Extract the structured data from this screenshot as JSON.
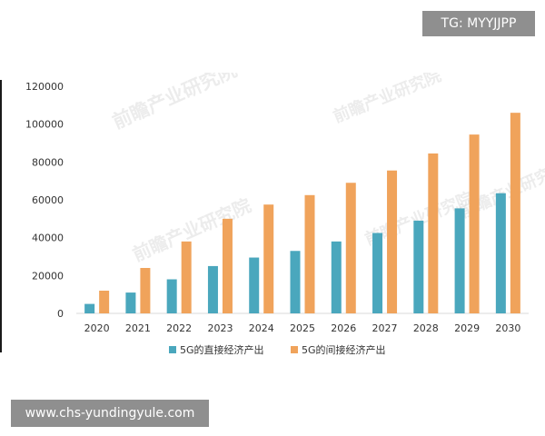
{
  "overlays": {
    "tg_label": "TG: MYYJJPP",
    "url_label": "www.chs-yundingyule.com"
  },
  "watermark": {
    "text": "前瞻产业研究院"
  },
  "chart_data": {
    "type": "bar",
    "categories": [
      "2020",
      "2021",
      "2022",
      "2023",
      "2024",
      "2025",
      "2026",
      "2027",
      "2028",
      "2029",
      "2030"
    ],
    "series": [
      {
        "name": "5G的直接经济产出",
        "color": "#4aa7bd",
        "values": [
          5000,
          11000,
          18000,
          25000,
          29500,
          33000,
          38000,
          42500,
          49000,
          55500,
          63500
        ]
      },
      {
        "name": "5G的间接经济产出",
        "color": "#f0a35b",
        "values": [
          12000,
          24000,
          38000,
          50000,
          57500,
          62500,
          69000,
          75500,
          84500,
          94500,
          106000
        ]
      }
    ],
    "ylim": [
      0,
      120000
    ],
    "yticks": [
      0,
      20000,
      40000,
      60000,
      80000,
      100000,
      120000
    ],
    "legend_position": "bottom"
  }
}
